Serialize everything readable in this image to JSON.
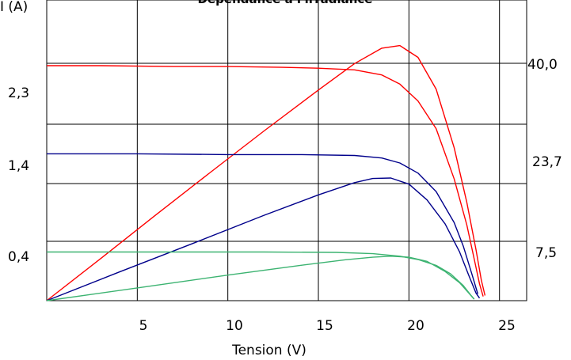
{
  "chart_data": {
    "type": "line",
    "title": "Dépendance à l'irradiance",
    "xlabel": "Tension (V)",
    "ylabel": "I (A)",
    "xlim": [
      0,
      26.5
    ],
    "grid": true,
    "x_ticks": [
      "5",
      "10",
      "15",
      "20",
      "25"
    ],
    "left_ticks": [
      "2,3",
      "1,4",
      "0,4"
    ],
    "right_ticks": [
      "40,0",
      "23,7",
      "7,5"
    ],
    "series": [
      {
        "color": "#ff0000",
        "kind": "current",
        "points": [
          [
            0,
            2.8
          ],
          [
            3,
            2.8
          ],
          [
            7,
            2.79
          ],
          [
            10,
            2.79
          ],
          [
            13,
            2.78
          ],
          [
            15,
            2.77
          ],
          [
            17,
            2.75
          ],
          [
            18.5,
            2.69
          ],
          [
            19.5,
            2.58
          ],
          [
            20.5,
            2.38
          ],
          [
            21.5,
            2.05
          ],
          [
            22.5,
            1.45
          ],
          [
            23.2,
            0.9
          ],
          [
            23.6,
            0.5
          ],
          [
            23.9,
            0.2
          ],
          [
            24.1,
            0.05
          ]
        ]
      },
      {
        "color": "#ff0000",
        "kind": "power",
        "points": [
          [
            0,
            0
          ],
          [
            3,
            0.83
          ],
          [
            6,
            1.67
          ],
          [
            9,
            2.5
          ],
          [
            12,
            3.32
          ],
          [
            15,
            4.12
          ],
          [
            17,
            4.64
          ],
          [
            18.5,
            4.94
          ],
          [
            19.5,
            4.99
          ],
          [
            20.5,
            4.76
          ],
          [
            21.5,
            4.14
          ],
          [
            22.5,
            2.99
          ],
          [
            23.2,
            1.92
          ],
          [
            23.7,
            1.0
          ],
          [
            24.0,
            0.4
          ],
          [
            24.2,
            0.1
          ]
        ]
      },
      {
        "color": "#00008b",
        "kind": "current",
        "points": [
          [
            0,
            1.75
          ],
          [
            5,
            1.75
          ],
          [
            10,
            1.74
          ],
          [
            14,
            1.74
          ],
          [
            17,
            1.73
          ],
          [
            18.5,
            1.7
          ],
          [
            19.5,
            1.64
          ],
          [
            20.5,
            1.52
          ],
          [
            21.5,
            1.3
          ],
          [
            22.5,
            0.93
          ],
          [
            23,
            0.65
          ],
          [
            23.5,
            0.3
          ],
          [
            23.8,
            0.08
          ]
        ]
      },
      {
        "color": "#00008b",
        "kind": "power",
        "points": [
          [
            0,
            0
          ],
          [
            4,
            0.56
          ],
          [
            8,
            1.11
          ],
          [
            12,
            1.67
          ],
          [
            15,
            2.07
          ],
          [
            17,
            2.31
          ],
          [
            18,
            2.39
          ],
          [
            19,
            2.4
          ],
          [
            20,
            2.28
          ],
          [
            21,
            1.97
          ],
          [
            22,
            1.5
          ],
          [
            22.8,
            0.95
          ],
          [
            23.3,
            0.5
          ],
          [
            23.7,
            0.15
          ],
          [
            23.9,
            0.05
          ]
        ]
      },
      {
        "color": "#3cb371",
        "kind": "current",
        "points": [
          [
            0,
            0.58
          ],
          [
            6,
            0.58
          ],
          [
            12,
            0.58
          ],
          [
            16,
            0.575
          ],
          [
            18,
            0.56
          ],
          [
            19.5,
            0.53
          ],
          [
            20.5,
            0.49
          ],
          [
            21.5,
            0.42
          ],
          [
            22.3,
            0.32
          ],
          [
            23,
            0.18
          ],
          [
            23.4,
            0.07
          ],
          [
            23.6,
            0.02
          ]
        ]
      },
      {
        "color": "#3cb371",
        "kind": "power",
        "points": [
          [
            0,
            0
          ],
          [
            5,
            0.25
          ],
          [
            10,
            0.5
          ],
          [
            14,
            0.69
          ],
          [
            16.5,
            0.8
          ],
          [
            18,
            0.85
          ],
          [
            19,
            0.87
          ],
          [
            20,
            0.85
          ],
          [
            21,
            0.77
          ],
          [
            22,
            0.57
          ],
          [
            22.8,
            0.35
          ],
          [
            23.3,
            0.15
          ],
          [
            23.6,
            0.03
          ]
        ]
      }
    ]
  }
}
